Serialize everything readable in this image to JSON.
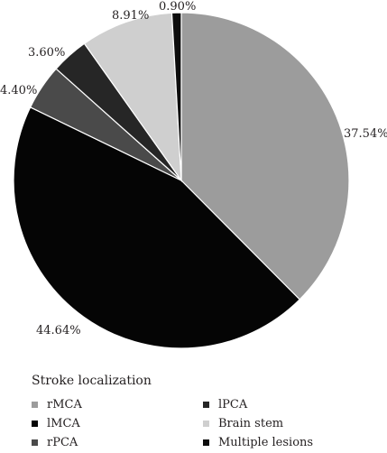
{
  "chart_data": {
    "type": "pie",
    "slices": [
      {
        "label": "rMCA",
        "value": 37.54,
        "display": "37.54%",
        "color": "#9c9c9c"
      },
      {
        "label": "lMCA",
        "value": 44.64,
        "display": "44.64%",
        "color": "#050505"
      },
      {
        "label": "rPCA",
        "value": 4.4,
        "display": "4.40%",
        "color": "#4a4a4a"
      },
      {
        "label": "lPCA",
        "value": 3.6,
        "display": "3.60%",
        "color": "#262626"
      },
      {
        "label": "Brain stem",
        "value": 8.91,
        "display": "8.91%",
        "color": "#cfcfcf"
      },
      {
        "label": "Multiple lesions",
        "value": 0.9,
        "display": "0.90%",
        "color": "#0d0d0d"
      }
    ],
    "start": "12 o'clock",
    "direction": "clockwise",
    "legend": {
      "title": "Stroke localization",
      "placement": "bottom-left",
      "columns": [
        [
          "rMCA",
          "lMCA",
          "rPCA"
        ],
        [
          "lPCA",
          "Brain stem",
          "Multiple lesions"
        ]
      ]
    }
  }
}
